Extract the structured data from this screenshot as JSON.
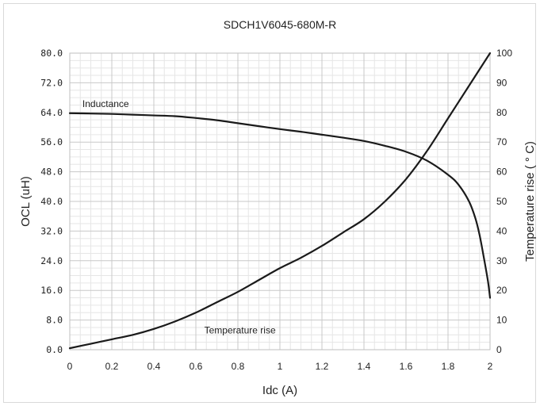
{
  "chart_data": {
    "type": "line",
    "title": "SDCH1V6045-680M-R",
    "xlabel": "Idc (A)",
    "ylabel_left": "OCL (uH)",
    "ylabel_right": "Temperature rise ( ° C)",
    "xlim": [
      0,
      2
    ],
    "ylim_left": [
      0,
      80
    ],
    "ylim_right": [
      0,
      100
    ],
    "x_ticks": [
      "0",
      "0.2",
      "0.4",
      "0.6",
      "0.8",
      "1",
      "1.2",
      "1.4",
      "1.6",
      "1.8",
      "2"
    ],
    "y_left_ticks": [
      "0.0",
      "8.0",
      "16.0",
      "24.0",
      "32.0",
      "40.0",
      "48.0",
      "56.0",
      "64.0",
      "72.0",
      "80.0"
    ],
    "y_right_ticks": [
      "0",
      "10",
      "20",
      "30",
      "40",
      "50",
      "60",
      "70",
      "80",
      "90",
      "100"
    ],
    "grid": true,
    "series": [
      {
        "name": "Inductance",
        "axis": "left",
        "x": [
          0,
          0.1,
          0.2,
          0.3,
          0.4,
          0.5,
          0.6,
          0.7,
          0.8,
          0.9,
          1.0,
          1.1,
          1.2,
          1.3,
          1.4,
          1.5,
          1.6,
          1.7,
          1.8,
          1.85,
          1.9,
          1.93,
          1.95,
          1.97,
          1.99,
          2.0
        ],
        "y": [
          63.8,
          63.7,
          63.6,
          63.4,
          63.2,
          63.0,
          62.5,
          61.9,
          61.1,
          60.3,
          59.5,
          58.8,
          58.0,
          57.2,
          56.3,
          55.0,
          53.4,
          51.0,
          47.2,
          44.5,
          40.0,
          35.5,
          31.0,
          25.0,
          18.5,
          14.0
        ]
      },
      {
        "name": "Temperature rise",
        "axis": "right",
        "x": [
          0,
          0.1,
          0.2,
          0.3,
          0.4,
          0.5,
          0.6,
          0.7,
          0.8,
          0.9,
          1.0,
          1.1,
          1.2,
          1.3,
          1.4,
          1.5,
          1.6,
          1.7,
          1.8,
          1.9,
          2.0
        ],
        "y": [
          0.5,
          2.0,
          3.5,
          5.0,
          7.0,
          9.5,
          12.5,
          16.0,
          19.5,
          23.5,
          27.5,
          31.0,
          35.0,
          39.5,
          44.0,
          50.0,
          57.5,
          67.0,
          78.0,
          89.0,
          100.0
        ]
      }
    ],
    "annotations": [
      {
        "text": "Inductance",
        "x": 0.06,
        "y_left": 65.5
      },
      {
        "text": "Temperature rise",
        "x": 0.64,
        "y_left": 4.4
      }
    ]
  }
}
